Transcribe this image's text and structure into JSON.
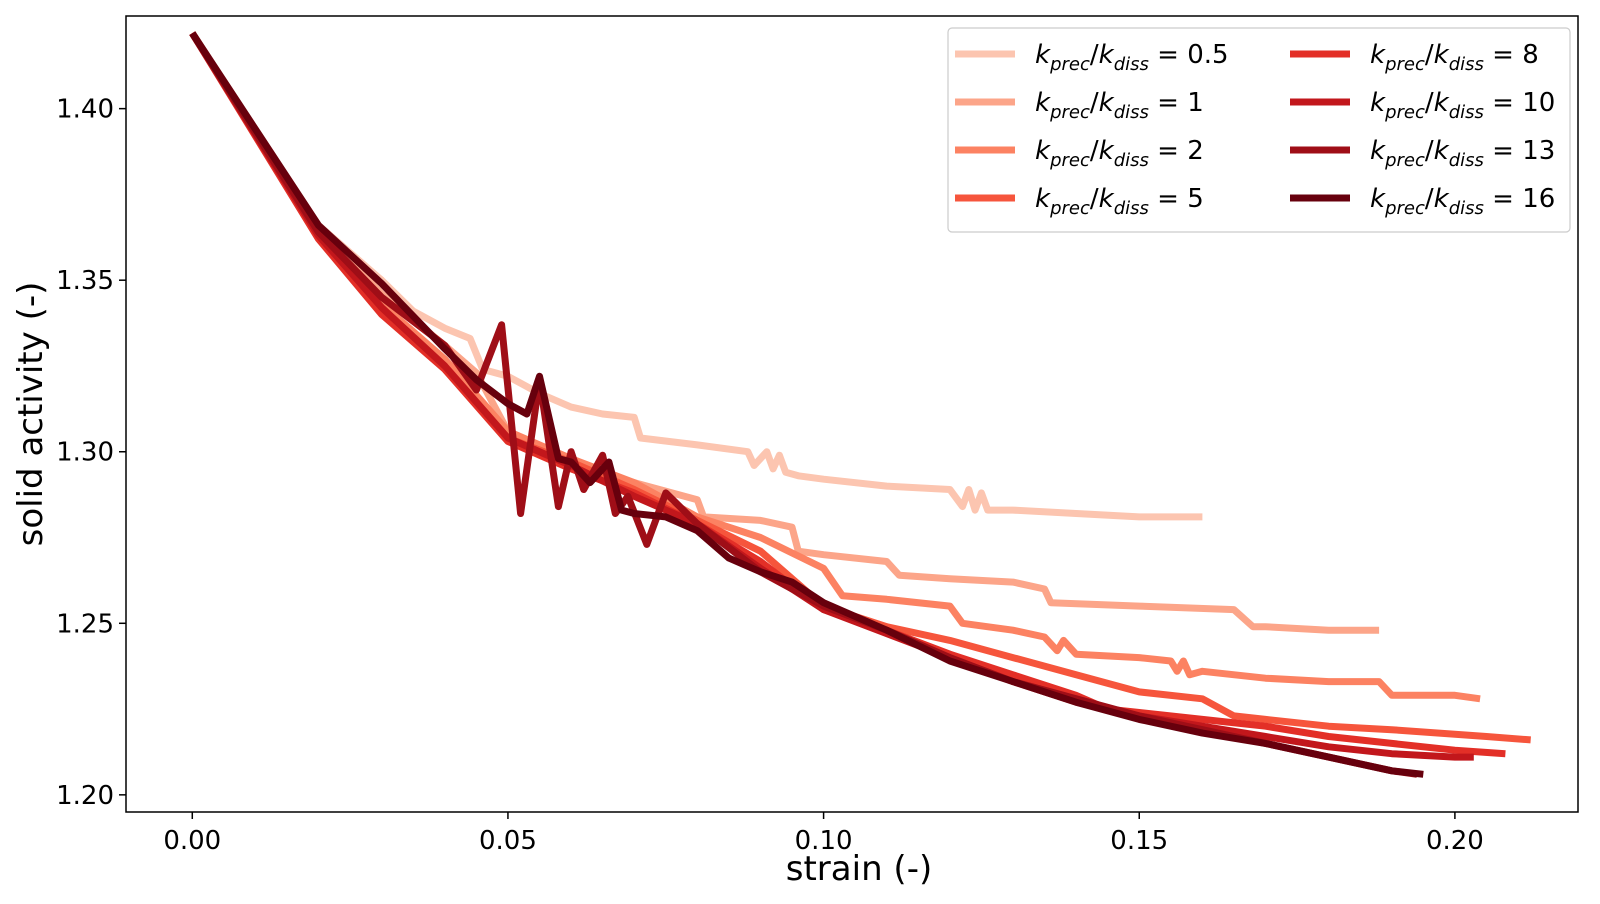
{
  "chart_data": {
    "type": "line",
    "title": "",
    "xlabel": "strain (-)",
    "ylabel": "solid activity (-)",
    "xlim": [
      -0.0105,
      0.2195
    ],
    "ylim": [
      1.195,
      1.427
    ],
    "xticks": [
      0.0,
      0.05,
      0.1,
      0.15,
      0.2
    ],
    "xtick_labels": [
      "0.00",
      "0.05",
      "0.10",
      "0.15",
      "0.20"
    ],
    "yticks": [
      1.2,
      1.25,
      1.3,
      1.35,
      1.4
    ],
    "ytick_labels": [
      "1.20",
      "1.25",
      "1.30",
      "1.35",
      "1.40"
    ],
    "grid": false,
    "legend_position": "top-right",
    "legend_columns": 2,
    "series": [
      {
        "name": "k_prec/k_diss = 0.5",
        "label_num": "k",
        "label_sub1": "prec",
        "label_den": "k",
        "label_sub2": "diss",
        "label_value": "= 0.5",
        "color": "#fcc5b0",
        "x": [
          0.0,
          0.02,
          0.03,
          0.035,
          0.04,
          0.044,
          0.046,
          0.05,
          0.055,
          0.06,
          0.065,
          0.07,
          0.071,
          0.08,
          0.088,
          0.089,
          0.091,
          0.092,
          0.093,
          0.094,
          0.096,
          0.1,
          0.11,
          0.12,
          0.122,
          0.123,
          0.124,
          0.125,
          0.126,
          0.127,
          0.13,
          0.14,
          0.15,
          0.16
        ],
        "y": [
          1.422,
          1.366,
          1.35,
          1.341,
          1.336,
          1.333,
          1.324,
          1.322,
          1.317,
          1.313,
          1.311,
          1.31,
          1.304,
          1.302,
          1.3,
          1.296,
          1.3,
          1.295,
          1.299,
          1.294,
          1.293,
          1.292,
          1.29,
          1.289,
          1.284,
          1.289,
          1.283,
          1.288,
          1.283,
          1.283,
          1.283,
          1.282,
          1.281,
          1.281
        ]
      },
      {
        "name": "k_prec/k_diss = 1",
        "label_num": "k",
        "label_sub1": "prec",
        "label_den": "k",
        "label_sub2": "diss",
        "label_value": "= 1",
        "color": "#fca589",
        "x": [
          0.0,
          0.02,
          0.03,
          0.04,
          0.045,
          0.05,
          0.055,
          0.06,
          0.07,
          0.08,
          0.081,
          0.09,
          0.095,
          0.096,
          0.1,
          0.11,
          0.112,
          0.12,
          0.13,
          0.135,
          0.136,
          0.15,
          0.165,
          0.168,
          0.17,
          0.18,
          0.188
        ],
        "y": [
          1.422,
          1.365,
          1.346,
          1.331,
          1.323,
          1.306,
          1.299,
          1.295,
          1.291,
          1.286,
          1.281,
          1.28,
          1.278,
          1.271,
          1.27,
          1.268,
          1.264,
          1.263,
          1.262,
          1.26,
          1.256,
          1.255,
          1.254,
          1.249,
          1.249,
          1.248,
          1.248
        ]
      },
      {
        "name": "k_prec/k_diss = 2",
        "label_num": "k",
        "label_sub1": "prec",
        "label_den": "k",
        "label_sub2": "diss",
        "label_value": "= 2",
        "color": "#fc8262",
        "x": [
          0.0,
          0.02,
          0.03,
          0.04,
          0.05,
          0.06,
          0.07,
          0.08,
          0.09,
          0.1,
          0.103,
          0.11,
          0.12,
          0.122,
          0.13,
          0.135,
          0.137,
          0.138,
          0.14,
          0.15,
          0.155,
          0.156,
          0.157,
          0.158,
          0.16,
          0.17,
          0.18,
          0.188,
          0.19,
          0.2,
          0.204
        ],
        "y": [
          1.422,
          1.364,
          1.343,
          1.327,
          1.306,
          1.298,
          1.291,
          1.281,
          1.275,
          1.266,
          1.258,
          1.257,
          1.255,
          1.25,
          1.248,
          1.246,
          1.242,
          1.245,
          1.241,
          1.24,
          1.239,
          1.236,
          1.239,
          1.235,
          1.236,
          1.234,
          1.233,
          1.233,
          1.229,
          1.229,
          1.228
        ]
      },
      {
        "name": "k_prec/k_diss = 5",
        "label_num": "k",
        "label_sub1": "prec",
        "label_den": "k",
        "label_sub2": "diss",
        "label_value": "= 5",
        "color": "#f6553c",
        "x": [
          0.0,
          0.02,
          0.03,
          0.04,
          0.05,
          0.06,
          0.07,
          0.08,
          0.09,
          0.1,
          0.105,
          0.11,
          0.12,
          0.14,
          0.15,
          0.16,
          0.165,
          0.17,
          0.18,
          0.19,
          0.205,
          0.212
        ],
        "y": [
          1.422,
          1.363,
          1.341,
          1.325,
          1.304,
          1.297,
          1.289,
          1.28,
          1.271,
          1.255,
          1.252,
          1.249,
          1.245,
          1.235,
          1.23,
          1.228,
          1.223,
          1.222,
          1.22,
          1.219,
          1.217,
          1.216
        ]
      },
      {
        "name": "k_prec/k_diss = 8",
        "label_num": "k",
        "label_sub1": "prec",
        "label_den": "k",
        "label_sub2": "diss",
        "label_value": "= 8",
        "color": "#e32f27",
        "x": [
          0.0,
          0.02,
          0.03,
          0.04,
          0.05,
          0.06,
          0.07,
          0.08,
          0.09,
          0.1,
          0.11,
          0.12,
          0.13,
          0.14,
          0.145,
          0.15,
          0.16,
          0.17,
          0.18,
          0.19,
          0.2,
          0.208
        ],
        "y": [
          1.422,
          1.362,
          1.34,
          1.324,
          1.303,
          1.295,
          1.288,
          1.279,
          1.268,
          1.254,
          1.248,
          1.241,
          1.235,
          1.229,
          1.225,
          1.224,
          1.222,
          1.22,
          1.217,
          1.215,
          1.213,
          1.212
        ]
      },
      {
        "name": "k_prec/k_diss = 10",
        "label_num": "k",
        "label_sub1": "prec",
        "label_den": "k",
        "label_sub2": "diss",
        "label_value": "= 10",
        "color": "#c2171c",
        "x": [
          0.0,
          0.02,
          0.03,
          0.04,
          0.05,
          0.06,
          0.07,
          0.08,
          0.09,
          0.1,
          0.11,
          0.12,
          0.13,
          0.14,
          0.15,
          0.16,
          0.17,
          0.18,
          0.19,
          0.2,
          0.203
        ],
        "y": [
          1.422,
          1.363,
          1.342,
          1.325,
          1.304,
          1.296,
          1.287,
          1.279,
          1.266,
          1.254,
          1.247,
          1.24,
          1.233,
          1.227,
          1.223,
          1.22,
          1.217,
          1.214,
          1.212,
          1.211,
          1.211
        ]
      },
      {
        "name": "k_prec/k_diss = 13",
        "label_num": "k",
        "label_sub1": "prec",
        "label_den": "k",
        "label_sub2": "diss",
        "label_value": "= 13",
        "color": "#9f0e17",
        "x": [
          0.0,
          0.02,
          0.03,
          0.04,
          0.045,
          0.049,
          0.052,
          0.055,
          0.058,
          0.06,
          0.062,
          0.065,
          0.067,
          0.069,
          0.072,
          0.075,
          0.08,
          0.09,
          0.1,
          0.11,
          0.12,
          0.13,
          0.14,
          0.15,
          0.16,
          0.17,
          0.18,
          0.19,
          0.194
        ],
        "y": [
          1.422,
          1.364,
          1.345,
          1.331,
          1.318,
          1.337,
          1.282,
          1.321,
          1.284,
          1.3,
          1.289,
          1.299,
          1.282,
          1.287,
          1.273,
          1.288,
          1.279,
          1.265,
          1.255,
          1.248,
          1.24,
          1.233,
          1.228,
          1.223,
          1.219,
          1.215,
          1.211,
          1.207,
          1.206
        ]
      },
      {
        "name": "k_prec/k_diss = 16",
        "label_num": "k",
        "label_sub1": "prec",
        "label_den": "k",
        "label_sub2": "diss",
        "label_value": "= 16",
        "color": "#67000d",
        "x": [
          0.0,
          0.02,
          0.03,
          0.04,
          0.045,
          0.05,
          0.053,
          0.055,
          0.058,
          0.06,
          0.063,
          0.066,
          0.068,
          0.07,
          0.075,
          0.08,
          0.085,
          0.09,
          0.095,
          0.1,
          0.11,
          0.12,
          0.13,
          0.14,
          0.15,
          0.16,
          0.17,
          0.18,
          0.19,
          0.195
        ],
        "y": [
          1.422,
          1.366,
          1.349,
          1.33,
          1.321,
          1.314,
          1.311,
          1.322,
          1.298,
          1.297,
          1.291,
          1.297,
          1.283,
          1.282,
          1.281,
          1.277,
          1.269,
          1.265,
          1.262,
          1.256,
          1.248,
          1.239,
          1.233,
          1.227,
          1.222,
          1.218,
          1.215,
          1.211,
          1.207,
          1.206
        ]
      }
    ]
  }
}
